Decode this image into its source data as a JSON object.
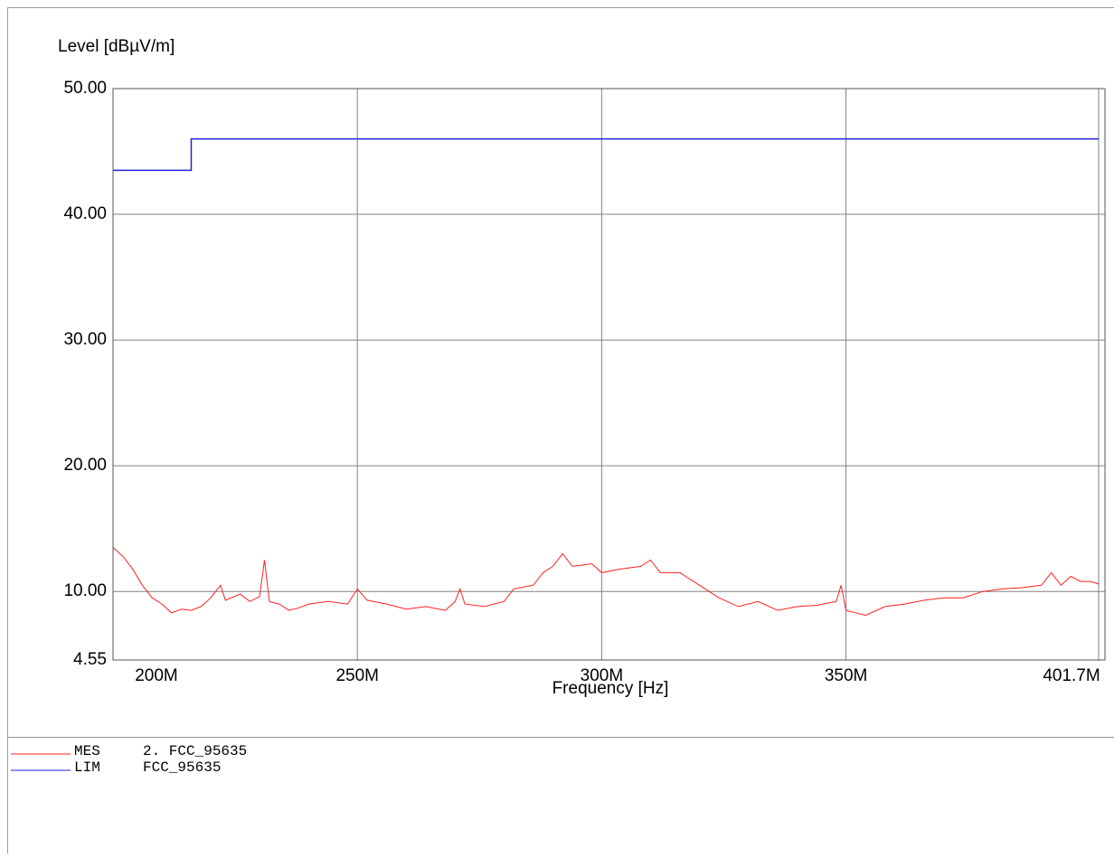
{
  "chart_data": {
    "type": "line",
    "ylabel": "Level [dBµV/m]",
    "xlabel": "Frequency [Hz]",
    "xlim": [
      200000000,
      401700000
    ],
    "xticks": [
      {
        "value": 200000000,
        "label": "200M"
      },
      {
        "value": 250000000,
        "label": "250M"
      },
      {
        "value": 300000000,
        "label": "300M"
      },
      {
        "value": 350000000,
        "label": "350M"
      },
      {
        "value": 401700000,
        "label": "401.7M"
      }
    ],
    "ylim": [
      4.55,
      50
    ],
    "yticks": [
      4.55,
      {
        "value": 10,
        "label": "10.00"
      },
      {
        "value": 20,
        "label": "20.00"
      },
      {
        "value": 30,
        "label": "30.00"
      },
      {
        "value": 40,
        "label": "40.00"
      },
      {
        "value": 50,
        "label": "50.00"
      }
    ],
    "grid": true,
    "series": [
      {
        "name": "MES",
        "label": "2. FCC_95635",
        "color": "#ff2020",
        "x": [
          200000000,
          202000000,
          204000000,
          206000000,
          208000000,
          210000000,
          212000000,
          214000000,
          216000000,
          218000000,
          220000000,
          222000000,
          223000000,
          226000000,
          228000000,
          230000000,
          231000000,
          232000000,
          234000000,
          236000000,
          238000000,
          240000000,
          244000000,
          248000000,
          250000000,
          252000000,
          256000000,
          260000000,
          264000000,
          268000000,
          270000000,
          271000000,
          272000000,
          276000000,
          280000000,
          282000000,
          286000000,
          288000000,
          290000000,
          292000000,
          294000000,
          298000000,
          300000000,
          304000000,
          308000000,
          310000000,
          312000000,
          316000000,
          320000000,
          324000000,
          328000000,
          332000000,
          336000000,
          340000000,
          344000000,
          348000000,
          349000000,
          350000000,
          354000000,
          358000000,
          362000000,
          366000000,
          370000000,
          374000000,
          378000000,
          382000000,
          386000000,
          390000000,
          392000000,
          394000000,
          396000000,
          398000000,
          400000000,
          401700000
        ],
        "values": [
          13.5,
          12.8,
          11.8,
          10.5,
          9.5,
          9.0,
          8.3,
          8.6,
          8.5,
          8.8,
          9.5,
          10.5,
          9.3,
          9.8,
          9.2,
          9.6,
          12.5,
          9.2,
          9.0,
          8.5,
          8.7,
          9.0,
          9.2,
          9.0,
          10.2,
          9.3,
          9.0,
          8.6,
          8.8,
          8.5,
          9.2,
          10.2,
          9.0,
          8.8,
          9.2,
          10.2,
          10.5,
          11.5,
          12.0,
          13.0,
          12.0,
          12.2,
          11.5,
          11.8,
          12.0,
          12.5,
          11.5,
          11.5,
          10.5,
          9.5,
          8.8,
          9.2,
          8.5,
          8.8,
          8.9,
          9.2,
          10.5,
          8.5,
          8.1,
          8.8,
          9.0,
          9.3,
          9.5,
          9.5,
          10.0,
          10.2,
          10.3,
          10.5,
          11.5,
          10.5,
          11.2,
          10.8,
          10.8,
          10.6
        ]
      },
      {
        "name": "LIM",
        "label": "FCC_95635",
        "color": "#2020e0",
        "x": [
          200000000,
          216000000,
          216000000,
          401700000
        ],
        "values": [
          43.5,
          43.5,
          46,
          46
        ]
      }
    ]
  }
}
